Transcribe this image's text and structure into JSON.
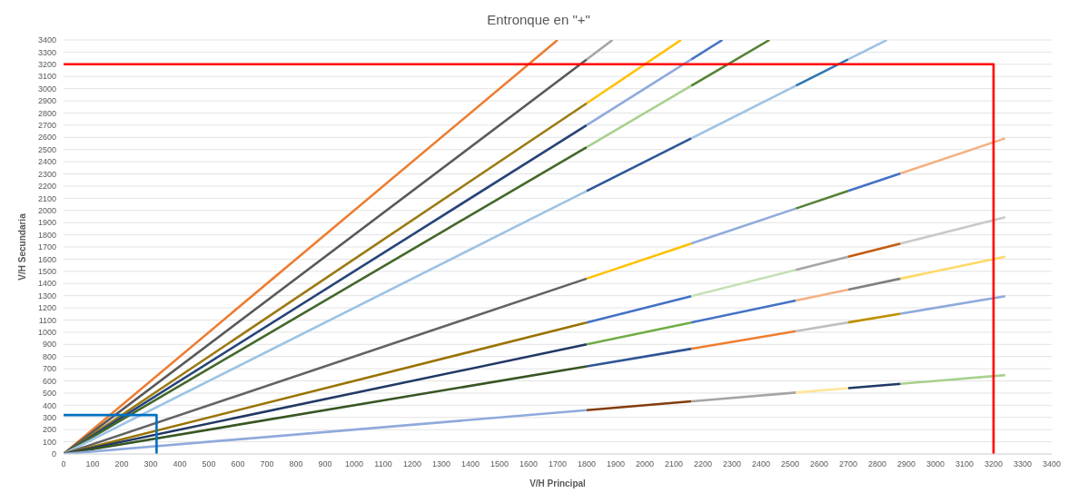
{
  "chart_data": {
    "type": "line",
    "title": "Entronque en \"+\"",
    "xlabel": "V/H Principal",
    "ylabel": "V/H Secundaria",
    "xlim": [
      0,
      3400
    ],
    "ylim": [
      0,
      3400
    ],
    "xticks": [
      0,
      100,
      200,
      300,
      400,
      500,
      600,
      700,
      800,
      900,
      1000,
      1100,
      1200,
      1300,
      1400,
      1500,
      1600,
      1700,
      1800,
      1900,
      2000,
      2100,
      2200,
      2300,
      2400,
      2500,
      2600,
      2700,
      2800,
      2900,
      3000,
      3100,
      3200,
      3300,
      3400
    ],
    "yticks": [
      0,
      100,
      200,
      300,
      400,
      500,
      600,
      700,
      800,
      900,
      1000,
      1100,
      1200,
      1300,
      1400,
      1500,
      1600,
      1700,
      1800,
      1900,
      2000,
      2100,
      2200,
      2300,
      2400,
      2500,
      2600,
      2700,
      2800,
      2900,
      3000,
      3100,
      3200,
      3300,
      3400
    ],
    "grid": "y",
    "marker": "none",
    "line_style": "solid",
    "series": [
      {
        "x": [
          0,
          1700
        ],
        "values": [
          0,
          3400
        ],
        "color": "#ed7d31"
      },
      {
        "x": [
          0,
          1800
        ],
        "values": [
          0,
          3240
        ],
        "color": "#595959"
      },
      {
        "x": [
          1800,
          1889
        ],
        "values": [
          3240,
          3400
        ],
        "color": "#a5a5a5"
      },
      {
        "x": [
          0,
          1800
        ],
        "values": [
          0,
          2880
        ],
        "color": "#9c7a12"
      },
      {
        "x": [
          1800,
          2125
        ],
        "values": [
          2880,
          3400
        ],
        "color": "#ffc000"
      },
      {
        "x": [
          0,
          1800
        ],
        "values": [
          0,
          2700
        ],
        "color": "#264478"
      },
      {
        "x": [
          1800,
          2160
        ],
        "values": [
          2700,
          3240
        ],
        "color": "#8faadc"
      },
      {
        "x": [
          2160,
          2267
        ],
        "values": [
          3240,
          3400
        ],
        "color": "#4472c4"
      },
      {
        "x": [
          0,
          1800
        ],
        "values": [
          0,
          2520
        ],
        "color": "#43682b"
      },
      {
        "x": [
          1800,
          2160
        ],
        "values": [
          2520,
          3024
        ],
        "color": "#a9d18e"
      },
      {
        "x": [
          2160,
          2429
        ],
        "values": [
          3024,
          3400
        ],
        "color": "#548235"
      },
      {
        "x": [
          0,
          1800
        ],
        "values": [
          0,
          2160
        ],
        "color": "#9dc3e6"
      },
      {
        "x": [
          1800,
          2160
        ],
        "values": [
          2160,
          2592
        ],
        "color": "#2e5597"
      },
      {
        "x": [
          2160,
          2520
        ],
        "values": [
          2592,
          3024
        ],
        "color": "#9dc3e6"
      },
      {
        "x": [
          2520,
          2700
        ],
        "values": [
          3024,
          3240
        ],
        "color": "#2e75b6"
      },
      {
        "x": [
          2700,
          2833
        ],
        "values": [
          3240,
          3400
        ],
        "color": "#9dc3e6"
      },
      {
        "x": [
          0,
          1800
        ],
        "values": [
          0,
          1440
        ],
        "color": "#636363"
      },
      {
        "x": [
          1800,
          2160
        ],
        "values": [
          1440,
          1728
        ],
        "color": "#ffc000"
      },
      {
        "x": [
          2160,
          2520
        ],
        "values": [
          1728,
          2016
        ],
        "color": "#8faadc"
      },
      {
        "x": [
          2520,
          2700
        ],
        "values": [
          2016,
          2160
        ],
        "color": "#548235"
      },
      {
        "x": [
          2700,
          2880
        ],
        "values": [
          2160,
          2304
        ],
        "color": "#4472c4"
      },
      {
        "x": [
          2880,
          3240
        ],
        "values": [
          2304,
          2592
        ],
        "color": "#f4b183"
      },
      {
        "x": [
          0,
          1800
        ],
        "values": [
          0,
          1080
        ],
        "color": "#997300"
      },
      {
        "x": [
          1800,
          2160
        ],
        "values": [
          1080,
          1296
        ],
        "color": "#4472c4"
      },
      {
        "x": [
          2160,
          2520
        ],
        "values": [
          1296,
          1512
        ],
        "color": "#c5e0b4"
      },
      {
        "x": [
          2520,
          2700
        ],
        "values": [
          1512,
          1620
        ],
        "color": "#a5a5a5"
      },
      {
        "x": [
          2700,
          2880
        ],
        "values": [
          1620,
          1728
        ],
        "color": "#c55a11"
      },
      {
        "x": [
          2880,
          3240
        ],
        "values": [
          1728,
          1944
        ],
        "color": "#c9c9c9"
      },
      {
        "x": [
          0,
          1800
        ],
        "values": [
          0,
          900
        ],
        "color": "#203864"
      },
      {
        "x": [
          1800,
          2160
        ],
        "values": [
          900,
          1080
        ],
        "color": "#70ad47"
      },
      {
        "x": [
          2160,
          2520
        ],
        "values": [
          1080,
          1260
        ],
        "color": "#4472c4"
      },
      {
        "x": [
          2520,
          2700
        ],
        "values": [
          1260,
          1350
        ],
        "color": "#f4b183"
      },
      {
        "x": [
          2700,
          2880
        ],
        "values": [
          1350,
          1440
        ],
        "color": "#7f7f7f"
      },
      {
        "x": [
          2880,
          3240
        ],
        "values": [
          1440,
          1620
        ],
        "color": "#ffd966"
      },
      {
        "x": [
          0,
          1800
        ],
        "values": [
          0,
          720
        ],
        "color": "#375623"
      },
      {
        "x": [
          1800,
          2160
        ],
        "values": [
          720,
          864
        ],
        "color": "#2f5597"
      },
      {
        "x": [
          2160,
          2520
        ],
        "values": [
          864,
          1008
        ],
        "color": "#ed7d31"
      },
      {
        "x": [
          2520,
          2700
        ],
        "values": [
          1008,
          1080
        ],
        "color": "#bfbfbf"
      },
      {
        "x": [
          2700,
          2880
        ],
        "values": [
          1080,
          1152
        ],
        "color": "#bf9000"
      },
      {
        "x": [
          2880,
          3240
        ],
        "values": [
          1152,
          1296
        ],
        "color": "#8faadc"
      },
      {
        "x": [
          0,
          1800
        ],
        "values": [
          0,
          360
        ],
        "color": "#8faadc"
      },
      {
        "x": [
          1800,
          2160
        ],
        "values": [
          360,
          432
        ],
        "color": "#843c0c"
      },
      {
        "x": [
          2160,
          2520
        ],
        "values": [
          432,
          504
        ],
        "color": "#a5a5a5"
      },
      {
        "x": [
          2520,
          2700
        ],
        "values": [
          504,
          540
        ],
        "color": "#ffe699"
      },
      {
        "x": [
          2700,
          2880
        ],
        "values": [
          540,
          576
        ],
        "color": "#203864"
      },
      {
        "x": [
          2880,
          3240
        ],
        "values": [
          576,
          648
        ],
        "color": "#a9d18e"
      },
      {
        "x": [
          0,
          3200,
          3200
        ],
        "values": [
          3200,
          3200,
          0
        ],
        "color": "#ff0000"
      },
      {
        "x": [
          0,
          320,
          320
        ],
        "values": [
          320,
          320,
          0
        ],
        "color": "#0070c0"
      }
    ]
  }
}
